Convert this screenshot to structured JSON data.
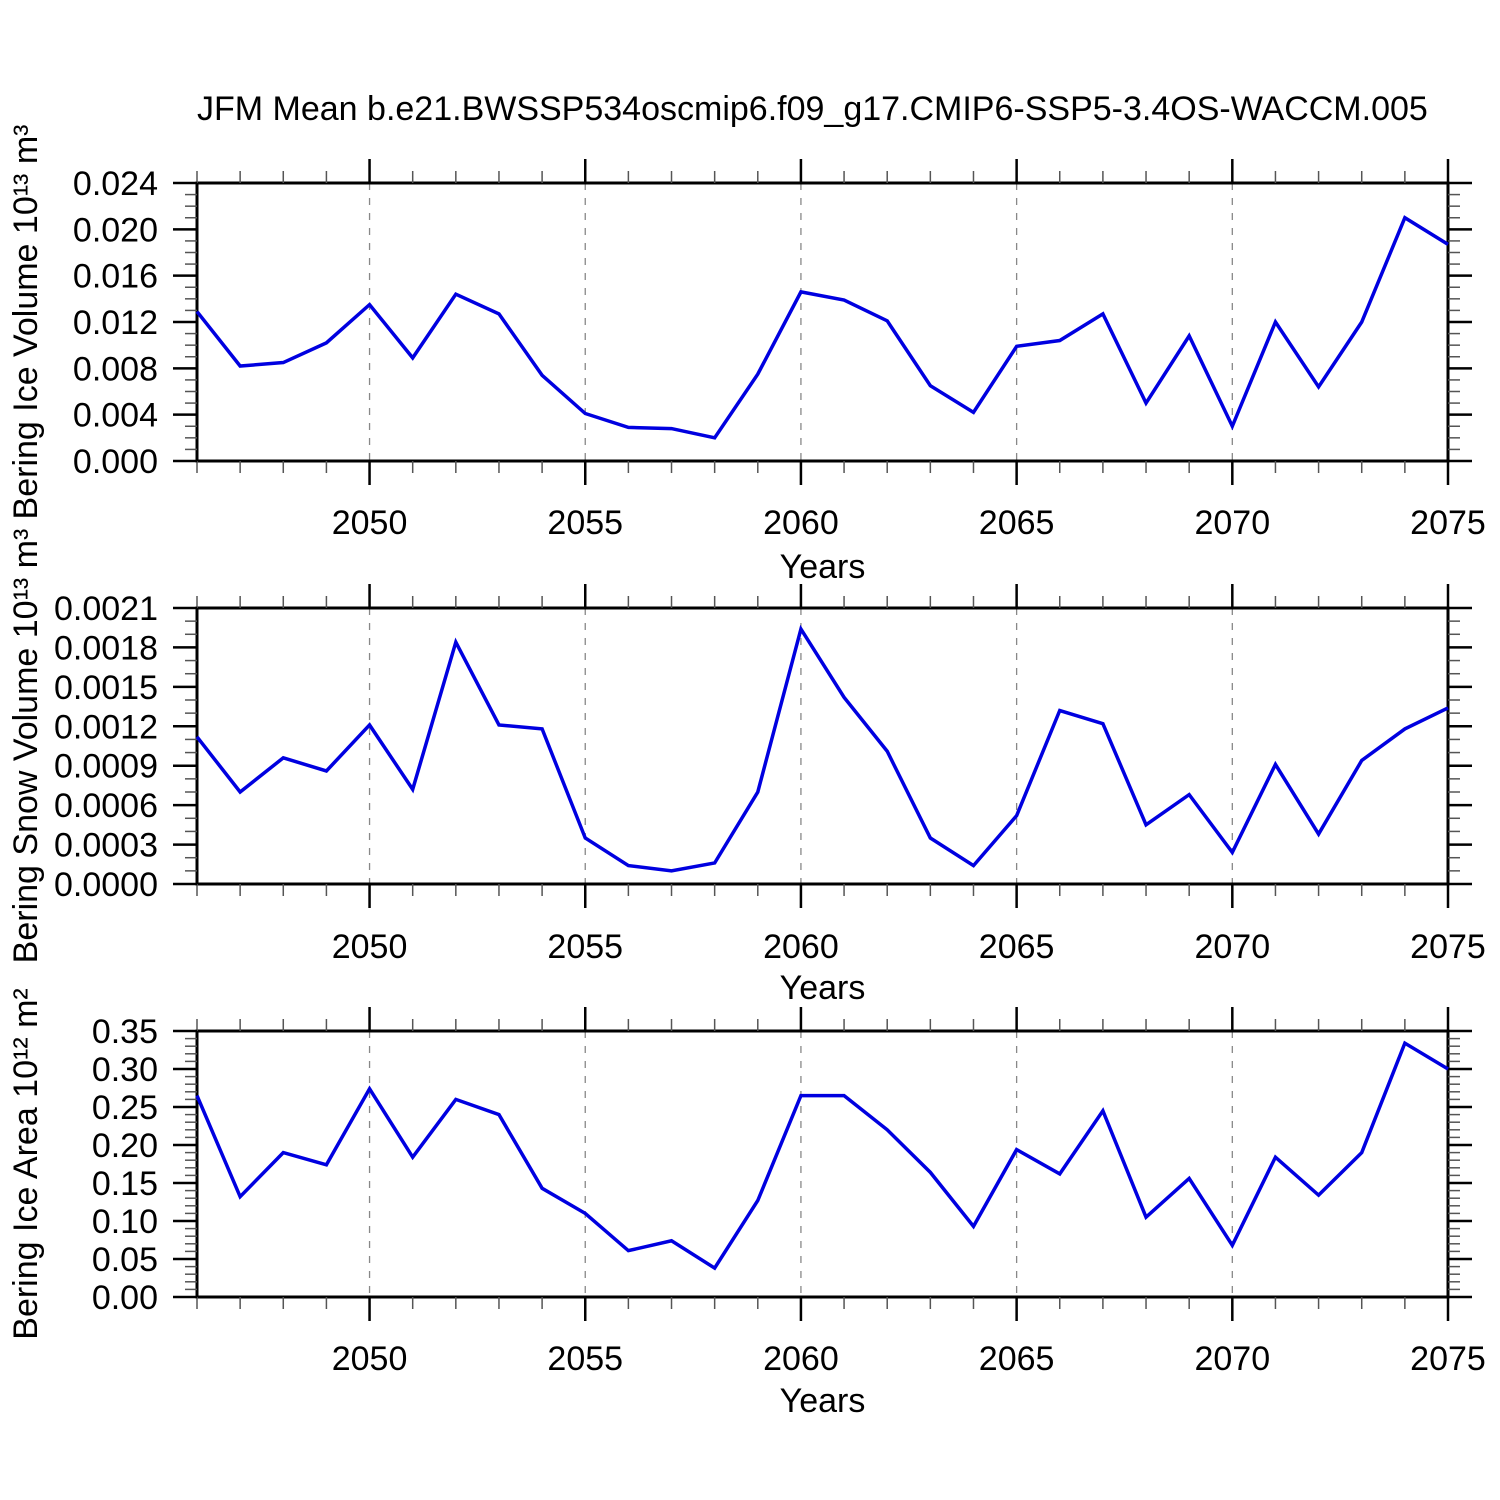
{
  "title": "JFM Mean b.e21.BWSSP534oscmip6.f09_g17.CMIP6-SSP5-3.4OS-WACCM.005",
  "line_color": "#0000E0",
  "grid_color": "#888888",
  "axis_color": "#000000",
  "chart_data": [
    {
      "type": "line",
      "ylabel": "Bering Ice Volume 10¹³ m³",
      "xlabel": "Years",
      "x": [
        2046,
        2047,
        2048,
        2049,
        2050,
        2051,
        2052,
        2053,
        2054,
        2055,
        2056,
        2057,
        2058,
        2059,
        2060,
        2061,
        2062,
        2063,
        2064,
        2065,
        2066,
        2067,
        2068,
        2069,
        2070,
        2071,
        2072,
        2073,
        2074,
        2075
      ],
      "values": [
        0.0129,
        0.0082,
        0.0085,
        0.0102,
        0.0135,
        0.0089,
        0.0144,
        0.0127,
        0.0074,
        0.0041,
        0.0029,
        0.0028,
        0.002,
        0.0075,
        0.0146,
        0.0139,
        0.0121,
        0.0065,
        0.0042,
        0.0099,
        0.0104,
        0.0127,
        0.005,
        0.0108,
        0.003,
        0.012,
        0.0064,
        0.012,
        0.021,
        0.0187
      ],
      "ylim": [
        0,
        0.024
      ],
      "yticks": [
        0,
        0.004,
        0.008,
        0.012,
        0.016,
        0.02,
        0.024
      ],
      "ytick_labels": [
        "0.000",
        "0.004",
        "0.008",
        "0.012",
        "0.016",
        "0.020",
        "0.024"
      ],
      "y_minor_step": 0.001,
      "xlim": [
        2046,
        2075
      ],
      "xticks": [
        2050,
        2055,
        2060,
        2065,
        2070,
        2075
      ],
      "xtick_labels": [
        "2050",
        "2055",
        "2060",
        "2065",
        "2070",
        "2075"
      ],
      "x_minor_step": 1,
      "grid_x": [
        2050,
        2055,
        2060,
        2065,
        2070
      ],
      "grid": true,
      "legend": null
    },
    {
      "type": "line",
      "ylabel": "Bering Snow Volume 10¹³ m³",
      "xlabel": "Years",
      "x": [
        2046,
        2047,
        2048,
        2049,
        2050,
        2051,
        2052,
        2053,
        2054,
        2055,
        2056,
        2057,
        2058,
        2059,
        2060,
        2061,
        2062,
        2063,
        2064,
        2065,
        2066,
        2067,
        2068,
        2069,
        2070,
        2071,
        2072,
        2073,
        2074,
        2075
      ],
      "values": [
        0.00112,
        0.0007,
        0.00096,
        0.00086,
        0.00121,
        0.00072,
        0.00184,
        0.00121,
        0.00118,
        0.00035,
        0.00014,
        0.0001,
        0.00016,
        0.0007,
        0.00194,
        0.00142,
        0.00101,
        0.00035,
        0.00014,
        0.00052,
        0.00132,
        0.00122,
        0.00045,
        0.00068,
        0.00024,
        0.00091,
        0.00038,
        0.00094,
        0.00118,
        0.00134
      ],
      "ylim": [
        0,
        0.0021
      ],
      "yticks": [
        0,
        0.0003,
        0.0006,
        0.0009,
        0.0012,
        0.0015,
        0.0018,
        0.0021
      ],
      "ytick_labels": [
        "0.0000",
        "0.0003",
        "0.0006",
        "0.0009",
        "0.0012",
        "0.0015",
        "0.0018",
        "0.0021"
      ],
      "y_minor_step": 0.0001,
      "xlim": [
        2046,
        2075
      ],
      "xticks": [
        2050,
        2055,
        2060,
        2065,
        2070,
        2075
      ],
      "xtick_labels": [
        "2050",
        "2055",
        "2060",
        "2065",
        "2070",
        "2075"
      ],
      "x_minor_step": 1,
      "grid_x": [
        2050,
        2055,
        2060,
        2065,
        2070
      ],
      "grid": true,
      "legend": null
    },
    {
      "type": "line",
      "ylabel": "Bering Ice Area 10¹² m²",
      "xlabel": "Years",
      "x": [
        2046,
        2047,
        2048,
        2049,
        2050,
        2051,
        2052,
        2053,
        2054,
        2055,
        2056,
        2057,
        2058,
        2059,
        2060,
        2061,
        2062,
        2063,
        2064,
        2065,
        2066,
        2067,
        2068,
        2069,
        2070,
        2071,
        2072,
        2073,
        2074,
        2075
      ],
      "values": [
        0.265,
        0.132,
        0.19,
        0.174,
        0.274,
        0.184,
        0.26,
        0.24,
        0.143,
        0.11,
        0.061,
        0.074,
        0.038,
        0.127,
        0.265,
        0.265,
        0.22,
        0.164,
        0.093,
        0.194,
        0.162,
        0.245,
        0.105,
        0.156,
        0.068,
        0.184,
        0.134,
        0.19,
        0.334,
        0.3
      ],
      "ylim": [
        0,
        0.35
      ],
      "yticks": [
        0,
        0.05,
        0.1,
        0.15,
        0.2,
        0.25,
        0.3,
        0.35
      ],
      "ytick_labels": [
        "0.00",
        "0.05",
        "0.10",
        "0.15",
        "0.20",
        "0.25",
        "0.30",
        "0.35"
      ],
      "y_minor_step": 0.01,
      "xlim": [
        2046,
        2075
      ],
      "xticks": [
        2050,
        2055,
        2060,
        2065,
        2070,
        2075
      ],
      "xtick_labels": [
        "2050",
        "2055",
        "2060",
        "2065",
        "2070",
        "2075"
      ],
      "x_minor_step": 1,
      "grid_x": [
        2050,
        2055,
        2060,
        2065,
        2070
      ],
      "grid": true,
      "legend": null
    }
  ]
}
